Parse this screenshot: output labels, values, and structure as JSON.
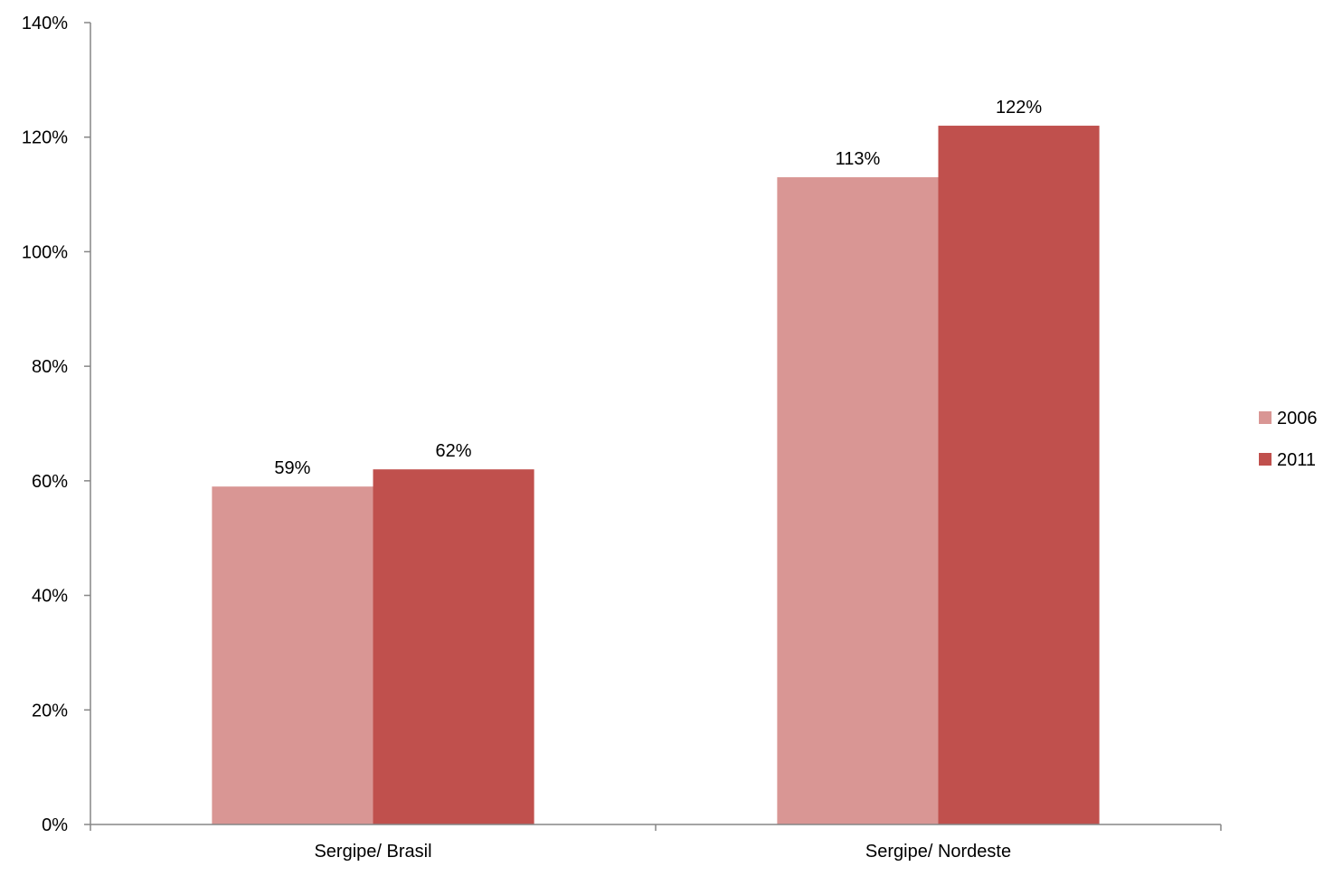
{
  "chart_data": {
    "type": "bar",
    "title": "",
    "xlabel": "",
    "ylabel": "",
    "categories": [
      "Sergipe/ Brasil",
      "Sergipe/ Nordeste"
    ],
    "series": [
      {
        "name": "2006",
        "values": [
          59,
          113
        ],
        "labels": [
          "59%",
          "113%"
        ],
        "color": "#d99694"
      },
      {
        "name": "2011",
        "values": [
          62,
          122
        ],
        "labels": [
          "62%",
          "122%"
        ],
        "color": "#c0504d"
      }
    ],
    "ylim": [
      0,
      140
    ],
    "yticks": [
      0,
      20,
      40,
      60,
      80,
      100,
      120,
      140
    ],
    "ytick_labels": [
      "0%",
      "20%",
      "40%",
      "60%",
      "80%",
      "100%",
      "120%",
      "140%"
    ],
    "grid": false,
    "legend_position": "right",
    "axis_color": "#868686"
  }
}
